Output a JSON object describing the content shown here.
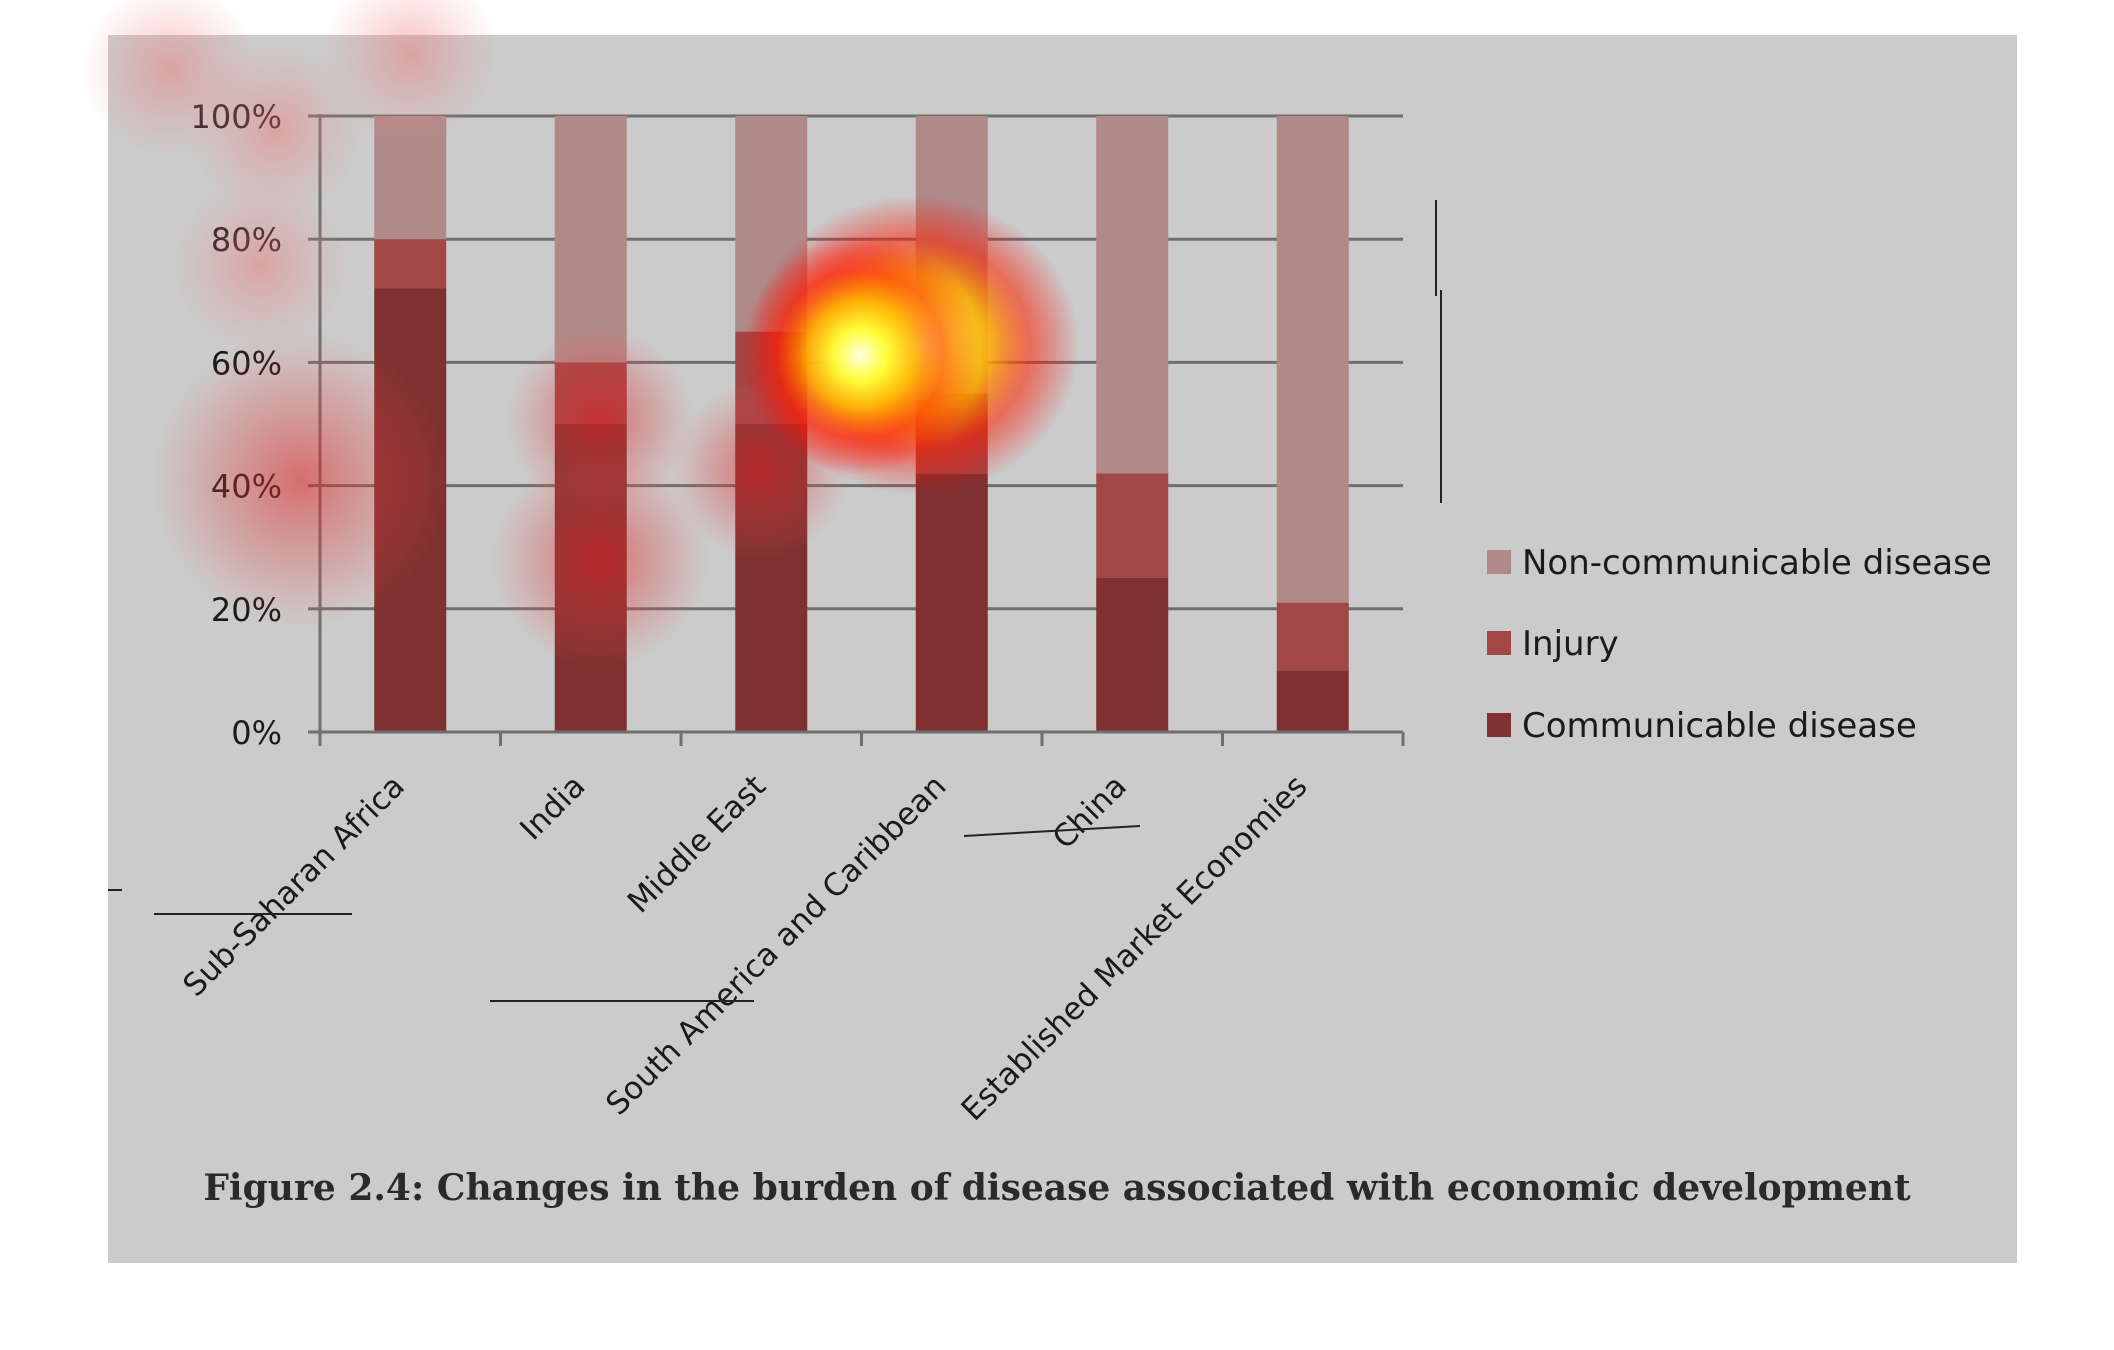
{
  "figure": {
    "caption": "Figure 2.4: Changes in the burden of disease associated with economic development"
  },
  "chart_data": {
    "type": "bar",
    "stacked": true,
    "categories": [
      "Sub-Saharan Africa",
      "India",
      "Middle East",
      "South America and Caribbean",
      "China",
      "Established Market Economies"
    ],
    "series": [
      {
        "name": "Communicable disease",
        "color": "#7f3030",
        "values": [
          72,
          50,
          50,
          42,
          25,
          10
        ]
      },
      {
        "name": "Injury",
        "color": "#a24646",
        "values": [
          8,
          10,
          15,
          13,
          17,
          11
        ]
      },
      {
        "name": "Non-communicable disease",
        "color": "#b08a89",
        "values": [
          20,
          40,
          35,
          45,
          58,
          79
        ]
      }
    ],
    "ylim": [
      0,
      100
    ],
    "yticks": [
      "0%",
      "20%",
      "40%",
      "60%",
      "80%",
      "100%"
    ],
    "grid": true,
    "legend_position": "right",
    "legend_order": [
      "Non-communicable disease",
      "Injury",
      "Communicable disease"
    ]
  },
  "overlay": {
    "type": "attention-heatmap"
  }
}
